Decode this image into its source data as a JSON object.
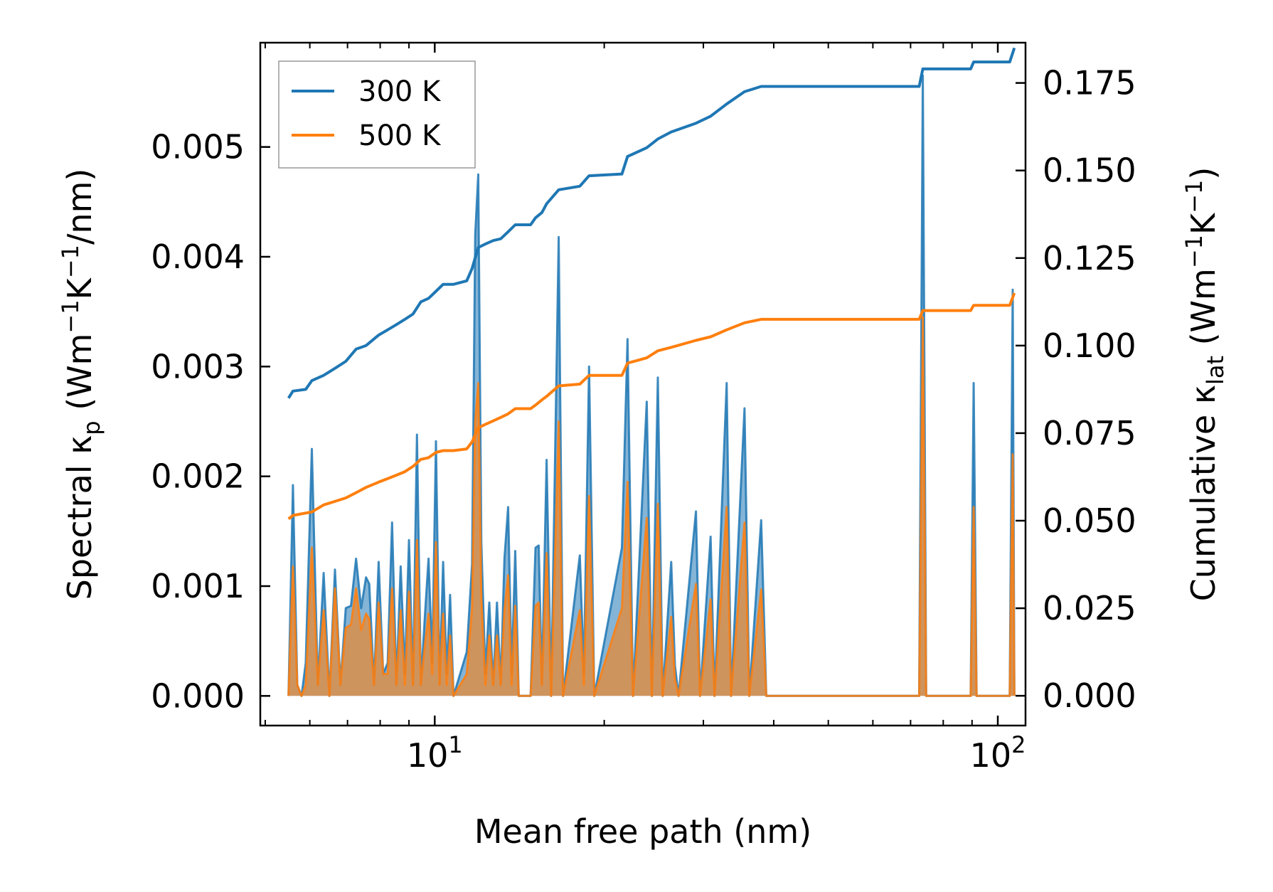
{
  "chart_data": {
    "type": "line",
    "xlabel": "Mean free path (nm)",
    "ylabel_left": "Spectral κp (Wm⁻¹K⁻¹/nm)",
    "ylabel_right": "Cumulative κlat (Wm⁻¹K⁻¹)",
    "xscale": "log",
    "xlim": [
      4.9,
      112
    ],
    "ylim_left": [
      -0.00027,
      0.00595
    ],
    "ylim_right": [
      -0.0085,
      0.1865
    ],
    "x_ticks": [
      {
        "value": 10,
        "base": "10",
        "exp": "1"
      },
      {
        "value": 100,
        "base": "10",
        "exp": "2"
      }
    ],
    "y_ticks_left": [
      "0.000",
      "0.001",
      "0.002",
      "0.003",
      "0.004",
      "0.005"
    ],
    "y_ticks_right": [
      "0.000",
      "0.025",
      "0.050",
      "0.075",
      "0.100",
      "0.125",
      "0.150",
      "0.175"
    ],
    "legend": {
      "position": "top-left",
      "entries": [
        "300 K",
        "500 K"
      ]
    },
    "colors": {
      "300K": "#1f77b4",
      "500K": "#ff7f0e"
    },
    "spectral_300K": [
      [
        5.5,
        0
      ],
      [
        5.6,
        0.00192
      ],
      [
        5.7,
        0.0001
      ],
      [
        5.8,
        0
      ],
      [
        5.9,
        0.0003
      ],
      [
        6.05,
        0.00225
      ],
      [
        6.2,
        0.0001
      ],
      [
        6.35,
        0.00112
      ],
      [
        6.5,
        0
      ],
      [
        6.65,
        0.00115
      ],
      [
        6.8,
        0.0001
      ],
      [
        6.95,
        0.0008
      ],
      [
        7.1,
        0.00082
      ],
      [
        7.25,
        0.00125
      ],
      [
        7.4,
        0.0008
      ],
      [
        7.55,
        0.00108
      ],
      [
        7.65,
        0.00102
      ],
      [
        7.8,
        0.0001
      ],
      [
        7.95,
        0.00122
      ],
      [
        8.1,
        0.0002
      ],
      [
        8.25,
        0.0003
      ],
      [
        8.4,
        0.00158
      ],
      [
        8.55,
        0.0001
      ],
      [
        8.7,
        0.00118
      ],
      [
        8.85,
        0.0002
      ],
      [
        9.0,
        0.00142
      ],
      [
        9.15,
        0.0001
      ],
      [
        9.3,
        0.00238
      ],
      [
        9.45,
        0.0001
      ],
      [
        9.6,
        0.0007
      ],
      [
        9.75,
        0.00125
      ],
      [
        9.9,
        0.0003
      ],
      [
        10.05,
        0.00232
      ],
      [
        10.2,
        0.0001
      ],
      [
        10.35,
        0.00122
      ],
      [
        10.5,
        0.0002
      ],
      [
        10.65,
        0.00092
      ],
      [
        10.8,
        0
      ],
      [
        11.4,
        0.0004
      ],
      [
        11.65,
        0.0012
      ],
      [
        11.8,
        0.0042
      ],
      [
        11.95,
        0.00475
      ],
      [
        12.1,
        0.0014
      ],
      [
        12.3,
        0.0002
      ],
      [
        12.5,
        0.00085
      ],
      [
        12.7,
        0.0001
      ],
      [
        12.9,
        0.00085
      ],
      [
        13.1,
        0.0001
      ],
      [
        13.3,
        0.00125
      ],
      [
        13.5,
        0.00172
      ],
      [
        13.7,
        0.0002
      ],
      [
        13.9,
        0.00132
      ],
      [
        14.1,
        0
      ],
      [
        14.8,
        0
      ],
      [
        15.1,
        0.00135
      ],
      [
        15.3,
        0.00137
      ],
      [
        15.5,
        0.0001
      ],
      [
        15.8,
        0.00215
      ],
      [
        16.1,
        0
      ],
      [
        16.6,
        0.00418
      ],
      [
        16.9,
        0
      ],
      [
        18.1,
        0.00128
      ],
      [
        18.4,
        0.0002
      ],
      [
        18.8,
        0.003
      ],
      [
        19.2,
        0
      ],
      [
        21.5,
        0.00135
      ],
      [
        22.0,
        0.00325
      ],
      [
        22.5,
        0
      ],
      [
        23.8,
        0.00268
      ],
      [
        24.3,
        0
      ],
      [
        24.9,
        0.0029
      ],
      [
        25.4,
        0
      ],
      [
        26.3,
        0.00122
      ],
      [
        26.7,
        0.00028
      ],
      [
        27.1,
        0
      ],
      [
        29.1,
        0.00168
      ],
      [
        29.6,
        0
      ],
      [
        30.9,
        0.00145
      ],
      [
        31.4,
        0
      ],
      [
        33.0,
        0.00285
      ],
      [
        33.6,
        0
      ],
      [
        35.5,
        0.00262
      ],
      [
        36.2,
        0
      ],
      [
        38.0,
        0.0016
      ],
      [
        38.8,
        0
      ],
      [
        72.5,
        0
      ],
      [
        73.6,
        0.00565
      ],
      [
        74.6,
        0
      ],
      [
        89.5,
        0
      ],
      [
        90.6,
        0.00285
      ],
      [
        91.7,
        0
      ],
      [
        105,
        0
      ],
      [
        106.3,
        0.0037
      ],
      [
        107,
        0
      ]
    ],
    "spectral_500K": [
      [
        5.5,
        0
      ],
      [
        5.6,
        0.00118
      ],
      [
        5.7,
        0.0001
      ],
      [
        5.8,
        0
      ],
      [
        5.9,
        0.0001
      ],
      [
        6.05,
        0.00135
      ],
      [
        6.2,
        0.0001
      ],
      [
        6.35,
        0.00078
      ],
      [
        6.5,
        0
      ],
      [
        6.65,
        0.00098
      ],
      [
        6.8,
        0.0001
      ],
      [
        6.95,
        0.00062
      ],
      [
        7.1,
        0.00065
      ],
      [
        7.25,
        0.00098
      ],
      [
        7.4,
        0.0006
      ],
      [
        7.55,
        0.00075
      ],
      [
        7.65,
        0.0007
      ],
      [
        7.8,
        0.0001
      ],
      [
        7.95,
        0.00085
      ],
      [
        8.1,
        0.0002
      ],
      [
        8.25,
        0.0002
      ],
      [
        8.4,
        0.00098
      ],
      [
        8.55,
        0.0001
      ],
      [
        8.7,
        0.00078
      ],
      [
        8.85,
        0.0001
      ],
      [
        9.0,
        0.00095
      ],
      [
        9.15,
        0.0001
      ],
      [
        9.3,
        0.00142
      ],
      [
        9.45,
        0.0001
      ],
      [
        9.6,
        0.00045
      ],
      [
        9.75,
        0.00075
      ],
      [
        9.9,
        0.0002
      ],
      [
        10.05,
        0.0014
      ],
      [
        10.2,
        0.0001
      ],
      [
        10.35,
        0.00075
      ],
      [
        10.5,
        0.0001
      ],
      [
        10.65,
        0.00055
      ],
      [
        10.8,
        0
      ],
      [
        11.4,
        0.0002
      ],
      [
        11.65,
        0.0008
      ],
      [
        11.8,
        0.0025
      ],
      [
        11.95,
        0.00285
      ],
      [
        12.1,
        0.0009
      ],
      [
        12.3,
        0.0001
      ],
      [
        12.5,
        0.00055
      ],
      [
        12.7,
        0.0001
      ],
      [
        12.9,
        0.00055
      ],
      [
        13.1,
        0.0001
      ],
      [
        13.3,
        0.00078
      ],
      [
        13.5,
        0.0011
      ],
      [
        13.7,
        0.0001
      ],
      [
        13.9,
        0.00082
      ],
      [
        14.1,
        0
      ],
      [
        14.8,
        0
      ],
      [
        15.1,
        0.00082
      ],
      [
        15.3,
        0.00085
      ],
      [
        15.5,
        0.0001
      ],
      [
        15.8,
        0.0013
      ],
      [
        16.1,
        0
      ],
      [
        16.6,
        0.0025
      ],
      [
        16.9,
        0
      ],
      [
        18.1,
        0.00078
      ],
      [
        18.4,
        0.0001
      ],
      [
        18.8,
        0.00182
      ],
      [
        19.2,
        0
      ],
      [
        21.5,
        0.0008
      ],
      [
        22.0,
        0.00195
      ],
      [
        22.5,
        0
      ],
      [
        23.8,
        0.00162
      ],
      [
        24.3,
        0
      ],
      [
        24.9,
        0.00175
      ],
      [
        25.4,
        0
      ],
      [
        26.3,
        0.00072
      ],
      [
        26.7,
        0.00015
      ],
      [
        27.1,
        0
      ],
      [
        29.1,
        0.00102
      ],
      [
        29.6,
        0
      ],
      [
        30.9,
        0.00088
      ],
      [
        31.4,
        0
      ],
      [
        33.0,
        0.00172
      ],
      [
        33.6,
        0
      ],
      [
        35.5,
        0.00158
      ],
      [
        36.2,
        0
      ],
      [
        38.0,
        0.00097
      ],
      [
        38.8,
        0
      ],
      [
        72.5,
        0
      ],
      [
        73.6,
        0.00345
      ],
      [
        74.6,
        0
      ],
      [
        89.5,
        0
      ],
      [
        90.6,
        0.00172
      ],
      [
        91.7,
        0
      ],
      [
        105,
        0
      ],
      [
        106.3,
        0.0022
      ],
      [
        107,
        0
      ]
    ],
    "cumulative_300K": [
      [
        5.5,
        0.085
      ],
      [
        5.6,
        0.087
      ],
      [
        5.9,
        0.0875
      ],
      [
        6.05,
        0.09
      ],
      [
        6.35,
        0.0915
      ],
      [
        6.65,
        0.0935
      ],
      [
        6.95,
        0.0955
      ],
      [
        7.25,
        0.099
      ],
      [
        7.55,
        0.1
      ],
      [
        7.95,
        0.103
      ],
      [
        8.25,
        0.1045
      ],
      [
        8.55,
        0.106
      ],
      [
        8.85,
        0.1075
      ],
      [
        9.15,
        0.109
      ],
      [
        9.45,
        0.1125
      ],
      [
        9.75,
        0.1135
      ],
      [
        10.05,
        0.1155
      ],
      [
        10.35,
        0.1175
      ],
      [
        10.8,
        0.1175
      ],
      [
        11.4,
        0.1185
      ],
      [
        11.65,
        0.122
      ],
      [
        11.95,
        0.128
      ],
      [
        12.3,
        0.129
      ],
      [
        12.7,
        0.13
      ],
      [
        13.1,
        0.1305
      ],
      [
        13.5,
        0.1325
      ],
      [
        13.9,
        0.1345
      ],
      [
        14.8,
        0.1345
      ],
      [
        15.1,
        0.1365
      ],
      [
        15.5,
        0.138
      ],
      [
        15.8,
        0.1405
      ],
      [
        16.6,
        0.1445
      ],
      [
        18.1,
        0.1455
      ],
      [
        18.8,
        0.1485
      ],
      [
        21.5,
        0.149
      ],
      [
        22.0,
        0.154
      ],
      [
        23.8,
        0.1565
      ],
      [
        24.9,
        0.159
      ],
      [
        26.3,
        0.161
      ],
      [
        29.1,
        0.1635
      ],
      [
        30.9,
        0.1655
      ],
      [
        33.0,
        0.169
      ],
      [
        35.5,
        0.1725
      ],
      [
        38.0,
        0.174
      ],
      [
        72.5,
        0.174
      ],
      [
        73.6,
        0.179
      ],
      [
        89.5,
        0.179
      ],
      [
        90.6,
        0.181
      ],
      [
        105,
        0.181
      ],
      [
        107,
        0.185
      ]
    ],
    "cumulative_500K": [
      [
        5.5,
        0.0505
      ],
      [
        5.6,
        0.0515
      ],
      [
        6.05,
        0.0525
      ],
      [
        6.35,
        0.0545
      ],
      [
        6.65,
        0.0555
      ],
      [
        6.95,
        0.0565
      ],
      [
        7.25,
        0.058
      ],
      [
        7.55,
        0.0595
      ],
      [
        7.95,
        0.061
      ],
      [
        8.25,
        0.062
      ],
      [
        8.55,
        0.063
      ],
      [
        8.85,
        0.064
      ],
      [
        9.15,
        0.0655
      ],
      [
        9.45,
        0.0675
      ],
      [
        9.75,
        0.068
      ],
      [
        10.05,
        0.0695
      ],
      [
        10.35,
        0.07
      ],
      [
        10.8,
        0.07
      ],
      [
        11.4,
        0.0705
      ],
      [
        11.65,
        0.0725
      ],
      [
        11.95,
        0.0765
      ],
      [
        12.3,
        0.0775
      ],
      [
        12.7,
        0.0785
      ],
      [
        13.1,
        0.0795
      ],
      [
        13.5,
        0.0805
      ],
      [
        13.9,
        0.082
      ],
      [
        14.8,
        0.082
      ],
      [
        15.1,
        0.083
      ],
      [
        15.5,
        0.0845
      ],
      [
        15.8,
        0.0855
      ],
      [
        16.6,
        0.0885
      ],
      [
        18.1,
        0.089
      ],
      [
        18.8,
        0.0915
      ],
      [
        21.5,
        0.0915
      ],
      [
        22.0,
        0.095
      ],
      [
        23.8,
        0.0965
      ],
      [
        24.9,
        0.0985
      ],
      [
        26.3,
        0.0995
      ],
      [
        29.1,
        0.1015
      ],
      [
        30.9,
        0.1025
      ],
      [
        33.0,
        0.1045
      ],
      [
        35.5,
        0.1065
      ],
      [
        38.0,
        0.1075
      ],
      [
        72.5,
        0.1075
      ],
      [
        73.6,
        0.11
      ],
      [
        89.5,
        0.11
      ],
      [
        90.6,
        0.1115
      ],
      [
        105,
        0.1115
      ],
      [
        107,
        0.115
      ]
    ]
  }
}
